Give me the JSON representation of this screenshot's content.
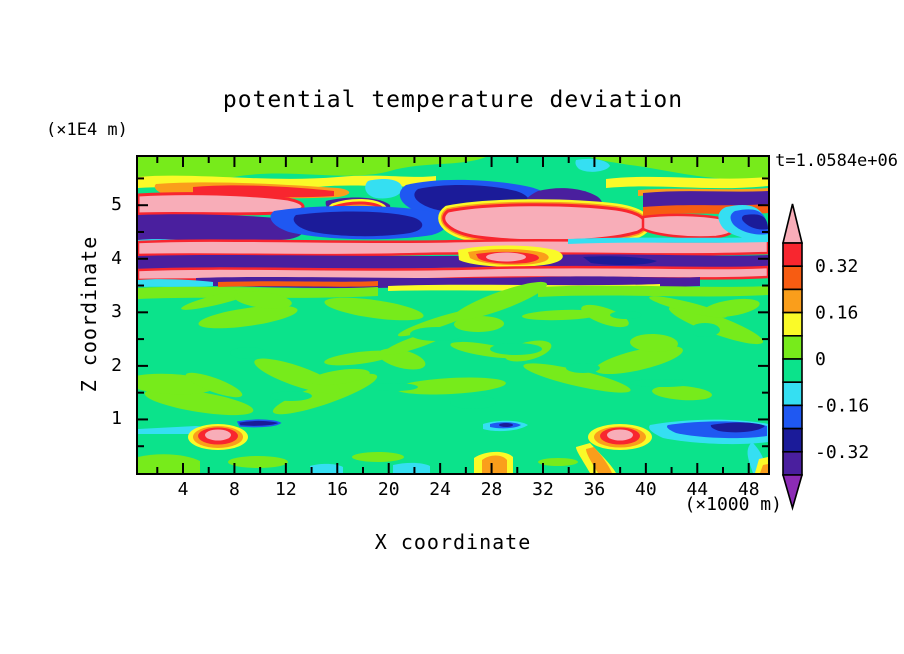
{
  "chart_data": {
    "type": "filled_contour",
    "title": "potential temperature deviation",
    "time_annotation": "t=1.0584e+06",
    "xlabel": "X coordinate",
    "x_unit_label": "(×1000 m)",
    "ylabel": "Z coordinate",
    "y_unit_label": "(×1E4 m)",
    "x_range": [
      0.5,
      49.5
    ],
    "z_range": [
      0,
      5.9
    ],
    "x_major_ticks": [
      4,
      8,
      12,
      16,
      20,
      24,
      28,
      32,
      36,
      40,
      44,
      48
    ],
    "x_minor_tick_step": 2,
    "z_major_ticks": [
      1,
      2,
      3,
      4,
      5
    ],
    "z_minor_tick_step": 0.5,
    "contour_interval": 0.08,
    "palette": {
      "pink": "#F8ADB8",
      "red": "#F8262F",
      "orangered": "#F75C12",
      "orange": "#FA9E1B",
      "yellow": "#FAFA28",
      "chartreuse": "#77EB1B",
      "green": "#0BE38B",
      "cyan": "#35DFF2",
      "blue": "#1F58F2",
      "navy": "#1B1B99",
      "purple": "#4A1F9E",
      "violet": "#8C2BB5"
    },
    "colorbar": {
      "level_boundaries_top_to_bottom": [
        0.4,
        0.32,
        0.24,
        0.16,
        0.08,
        0,
        -0.08,
        -0.16,
        -0.24,
        -0.32,
        -0.4
      ],
      "box_colors_top_to_bottom": [
        "red",
        "orangered",
        "orange",
        "yellow",
        "chartreuse",
        "green",
        "cyan",
        "blue",
        "navy",
        "purple"
      ],
      "over_arrow_color": "pink",
      "under_arrow_color": "violet",
      "boundary_labels": [
        {
          "text": "0.32",
          "boundary_index": 1
        },
        {
          "text": "0.16",
          "boundary_index": 3
        },
        {
          "text": "0",
          "boundary_index": 5
        },
        {
          "text": "-0.16",
          "boundary_index": 7
        },
        {
          "text": "-0.32",
          "boundary_index": 9
        }
      ]
    },
    "field_summary": {
      "background": "deviation near 0: green (0 to -0.08) with chartreuse (0 to +0.08) mottling through the mid-levels",
      "stratified_layer": "strongly alternating horizontal bands between z=3.8 and z=5.5 (x1E4 m): warm pink/red bands (>= +0.32) interleaved with cold purple/navy bands (<= -0.32), edged by yellow/orange and cyan/blue fringes",
      "surface_features": "near z=0.8: warm lenses (> +0.4, pink core with red/orange/yellow rings) centered near x=8 and x=33; cold blue/navy streaks near x=18-20, x=28 and x=40-48; small yellow/orange patches along the bottom boundary near x=27, x=37 and x=49"
    }
  }
}
